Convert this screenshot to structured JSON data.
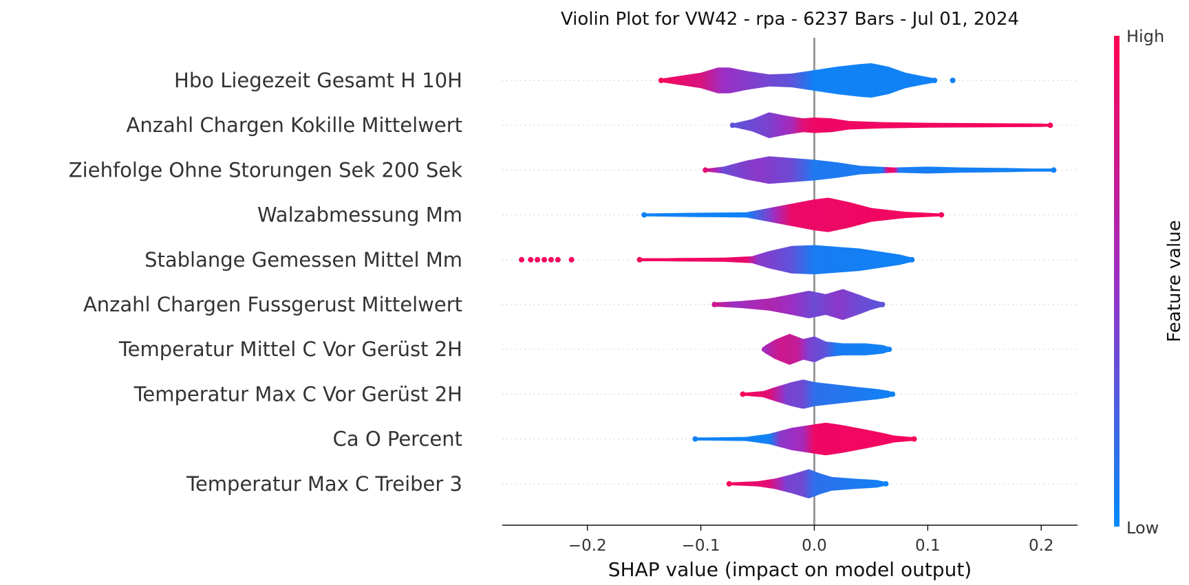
{
  "chart_data": {
    "type": "violin",
    "title": "Violin Plot for VW42 - rpa - 6237 Bars - Jul 01, 2024",
    "xlabel": "SHAP value (impact on model output)",
    "ylabel": "",
    "xlim": [
      -0.275,
      0.232
    ],
    "xticks": [
      -0.2,
      -0.1,
      0.0,
      0.1,
      0.2
    ],
    "xtick_labels": [
      "−0.2",
      "−0.1",
      "0.0",
      "0.1",
      "0.2"
    ],
    "colorbar": {
      "label": "Feature value",
      "high_label": "High",
      "low_label": "Low",
      "high_color": "#ff0052",
      "mid_color": "#9b2fc4",
      "low_color": "#008bfb"
    },
    "features": [
      {
        "name": "Hbo Liegezeit Gesamt H 10H",
        "min": -0.135,
        "max": 0.106,
        "outliers": [
          0.122
        ],
        "density": [
          [
            -0.135,
            0.1
          ],
          [
            -0.12,
            0.25
          ],
          [
            -0.1,
            0.45
          ],
          [
            -0.085,
            0.75
          ],
          [
            -0.075,
            0.75
          ],
          [
            -0.06,
            0.55
          ],
          [
            -0.04,
            0.35
          ],
          [
            -0.02,
            0.4
          ],
          [
            0.0,
            0.6
          ],
          [
            0.02,
            0.8
          ],
          [
            0.04,
            0.95
          ],
          [
            0.05,
            1.0
          ],
          [
            0.065,
            0.8
          ],
          [
            0.08,
            0.45
          ],
          [
            0.095,
            0.25
          ],
          [
            0.106,
            0.12
          ]
        ],
        "colors": [
          [
            -0.135,
            0.95
          ],
          [
            -0.1,
            0.8
          ],
          [
            -0.08,
            0.5
          ],
          [
            -0.05,
            0.4
          ],
          [
            -0.02,
            0.3
          ],
          [
            0.0,
            0.05
          ],
          [
            0.106,
            0.05
          ]
        ]
      },
      {
        "name": "Anzahl Chargen Kokille Mittelwert",
        "min": -0.072,
        "max": 0.208,
        "outliers": [],
        "density": [
          [
            -0.072,
            0.1
          ],
          [
            -0.055,
            0.35
          ],
          [
            -0.04,
            0.75
          ],
          [
            -0.025,
            0.55
          ],
          [
            -0.01,
            0.4
          ],
          [
            0.0,
            0.45
          ],
          [
            0.015,
            0.4
          ],
          [
            0.03,
            0.25
          ],
          [
            0.06,
            0.18
          ],
          [
            0.1,
            0.14
          ],
          [
            0.15,
            0.12
          ],
          [
            0.2,
            0.1
          ],
          [
            0.208,
            0.06
          ]
        ],
        "colors": [
          [
            -0.072,
            0.3
          ],
          [
            -0.04,
            0.4
          ],
          [
            -0.02,
            0.55
          ],
          [
            -0.01,
            0.85
          ],
          [
            0.0,
            0.92
          ],
          [
            0.208,
            0.95
          ]
        ]
      },
      {
        "name": "Ziehfolge Ohne Storungen Sek 200 Sek",
        "min": -0.096,
        "max": 0.211,
        "outliers": [],
        "density": [
          [
            -0.096,
            0.08
          ],
          [
            -0.08,
            0.2
          ],
          [
            -0.06,
            0.55
          ],
          [
            -0.04,
            0.8
          ],
          [
            -0.02,
            0.7
          ],
          [
            0.0,
            0.6
          ],
          [
            0.02,
            0.45
          ],
          [
            0.04,
            0.25
          ],
          [
            0.07,
            0.15
          ],
          [
            0.1,
            0.2
          ],
          [
            0.13,
            0.15
          ],
          [
            0.17,
            0.12
          ],
          [
            0.211,
            0.06
          ]
        ],
        "colors": [
          [
            -0.096,
            0.85
          ],
          [
            -0.08,
            0.35
          ],
          [
            -0.05,
            0.45
          ],
          [
            -0.02,
            0.35
          ],
          [
            0.0,
            0.1
          ],
          [
            0.06,
            0.08
          ],
          [
            0.065,
            0.9
          ],
          [
            0.07,
            0.9
          ],
          [
            0.075,
            0.08
          ],
          [
            0.211,
            0.05
          ]
        ]
      },
      {
        "name": "Walzabmessung Mm",
        "min": -0.15,
        "max": 0.112,
        "outliers": [],
        "density": [
          [
            -0.15,
            0.08
          ],
          [
            -0.11,
            0.12
          ],
          [
            -0.06,
            0.15
          ],
          [
            -0.04,
            0.4
          ],
          [
            -0.02,
            0.65
          ],
          [
            0.0,
            0.9
          ],
          [
            0.012,
            1.0
          ],
          [
            0.03,
            0.75
          ],
          [
            0.05,
            0.4
          ],
          [
            0.08,
            0.18
          ],
          [
            0.112,
            0.08
          ]
        ],
        "colors": [
          [
            -0.15,
            0.05
          ],
          [
            -0.06,
            0.05
          ],
          [
            -0.04,
            0.4
          ],
          [
            -0.02,
            0.9
          ],
          [
            0.112,
            0.95
          ]
        ]
      },
      {
        "name": "Stablange Gemessen Mittel Mm",
        "min": -0.154,
        "max": 0.086,
        "outliers": [
          -0.258,
          -0.25,
          -0.244,
          -0.238,
          -0.232,
          -0.226,
          -0.214
        ],
        "density": [
          [
            -0.154,
            0.06
          ],
          [
            -0.12,
            0.1
          ],
          [
            -0.08,
            0.12
          ],
          [
            -0.055,
            0.2
          ],
          [
            -0.04,
            0.5
          ],
          [
            -0.02,
            0.8
          ],
          [
            0.0,
            0.85
          ],
          [
            0.02,
            0.75
          ],
          [
            0.04,
            0.65
          ],
          [
            0.06,
            0.45
          ],
          [
            0.075,
            0.3
          ],
          [
            0.086,
            0.12
          ]
        ],
        "colors": [
          [
            -0.154,
            0.95
          ],
          [
            -0.06,
            0.9
          ],
          [
            -0.05,
            0.45
          ],
          [
            -0.02,
            0.3
          ],
          [
            0.0,
            0.08
          ],
          [
            0.086,
            0.05
          ]
        ]
      },
      {
        "name": "Anzahl Chargen Fussgerust Mittelwert",
        "min": -0.088,
        "max": 0.06,
        "outliers": [],
        "density": [
          [
            -0.088,
            0.12
          ],
          [
            -0.065,
            0.2
          ],
          [
            -0.04,
            0.35
          ],
          [
            -0.02,
            0.6
          ],
          [
            -0.005,
            0.8
          ],
          [
            0.01,
            0.6
          ],
          [
            0.025,
            0.9
          ],
          [
            0.04,
            0.55
          ],
          [
            0.05,
            0.3
          ],
          [
            0.06,
            0.12
          ]
        ],
        "colors": [
          [
            -0.088,
            0.75
          ],
          [
            -0.07,
            0.5
          ],
          [
            -0.04,
            0.6
          ],
          [
            -0.02,
            0.5
          ],
          [
            0.0,
            0.35
          ],
          [
            0.02,
            0.45
          ],
          [
            0.04,
            0.35
          ],
          [
            0.06,
            0.3
          ]
        ]
      },
      {
        "name": "Temperatur Mittel C Vor Gerüst 2H",
        "min": -0.044,
        "max": 0.066,
        "outliers": [],
        "density": [
          [
            -0.044,
            0.2
          ],
          [
            -0.035,
            0.55
          ],
          [
            -0.022,
            0.9
          ],
          [
            -0.01,
            0.6
          ],
          [
            0.0,
            0.75
          ],
          [
            0.01,
            0.45
          ],
          [
            0.025,
            0.35
          ],
          [
            0.045,
            0.35
          ],
          [
            0.06,
            0.25
          ],
          [
            0.066,
            0.12
          ]
        ],
        "colors": [
          [
            -0.044,
            0.55
          ],
          [
            -0.03,
            0.75
          ],
          [
            -0.015,
            0.7
          ],
          [
            -0.005,
            0.4
          ],
          [
            0.01,
            0.3
          ],
          [
            0.02,
            0.08
          ],
          [
            0.066,
            0.05
          ]
        ]
      },
      {
        "name": "Temperatur Max C Vor Gerüst 2H",
        "min": -0.063,
        "max": 0.069,
        "outliers": [],
        "density": [
          [
            -0.063,
            0.08
          ],
          [
            -0.045,
            0.18
          ],
          [
            -0.035,
            0.4
          ],
          [
            -0.02,
            0.7
          ],
          [
            -0.01,
            0.85
          ],
          [
            0.0,
            0.7
          ],
          [
            0.02,
            0.55
          ],
          [
            0.04,
            0.4
          ],
          [
            0.055,
            0.3
          ],
          [
            0.065,
            0.2
          ],
          [
            0.069,
            0.1
          ]
        ],
        "colors": [
          [
            -0.063,
            0.95
          ],
          [
            -0.04,
            0.85
          ],
          [
            -0.025,
            0.4
          ],
          [
            -0.01,
            0.35
          ],
          [
            0.0,
            0.15
          ],
          [
            0.069,
            0.05
          ]
        ]
      },
      {
        "name": "Ca O Percent",
        "min": -0.105,
        "max": 0.088,
        "outliers": [],
        "density": [
          [
            -0.105,
            0.08
          ],
          [
            -0.06,
            0.12
          ],
          [
            -0.04,
            0.3
          ],
          [
            -0.02,
            0.65
          ],
          [
            0.0,
            0.85
          ],
          [
            0.01,
            0.95
          ],
          [
            0.025,
            0.8
          ],
          [
            0.045,
            0.55
          ],
          [
            0.06,
            0.35
          ],
          [
            0.07,
            0.2
          ],
          [
            0.088,
            0.1
          ]
        ],
        "colors": [
          [
            -0.105,
            0.05
          ],
          [
            -0.04,
            0.05
          ],
          [
            -0.03,
            0.45
          ],
          [
            -0.01,
            0.55
          ],
          [
            0.0,
            0.92
          ],
          [
            0.088,
            0.95
          ]
        ]
      },
      {
        "name": "Temperatur Max C Treiber 3",
        "min": -0.075,
        "max": 0.063,
        "outliers": [],
        "density": [
          [
            -0.075,
            0.08
          ],
          [
            -0.05,
            0.15
          ],
          [
            -0.035,
            0.3
          ],
          [
            -0.02,
            0.55
          ],
          [
            -0.01,
            0.75
          ],
          [
            -0.005,
            0.85
          ],
          [
            0.005,
            0.6
          ],
          [
            0.015,
            0.4
          ],
          [
            0.035,
            0.3
          ],
          [
            0.055,
            0.22
          ],
          [
            0.063,
            0.1
          ]
        ],
        "colors": [
          [
            -0.075,
            0.95
          ],
          [
            -0.04,
            0.85
          ],
          [
            -0.025,
            0.4
          ],
          [
            -0.01,
            0.35
          ],
          [
            0.0,
            0.15
          ],
          [
            0.063,
            0.05
          ]
        ]
      }
    ]
  }
}
